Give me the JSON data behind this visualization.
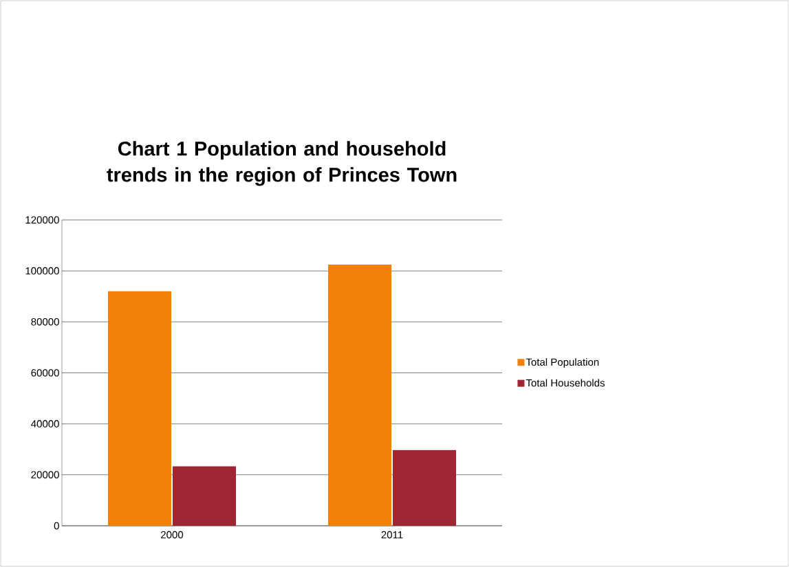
{
  "chart_data": {
    "type": "bar",
    "title": "Chart 1 Population and household trends in the region of Princes Town",
    "categories": [
      "2000",
      "2011"
    ],
    "series": [
      {
        "name": "Total Population",
        "color": "#f0820a",
        "values": [
          92000,
          102500
        ]
      },
      {
        "name": "Total Households",
        "color": "#a02535",
        "values": [
          23300,
          29700
        ]
      }
    ],
    "ylim": [
      0,
      120000
    ],
    "yticks": [
      0,
      20000,
      40000,
      60000,
      80000,
      100000,
      120000
    ],
    "grid": "y",
    "legend": "right"
  }
}
